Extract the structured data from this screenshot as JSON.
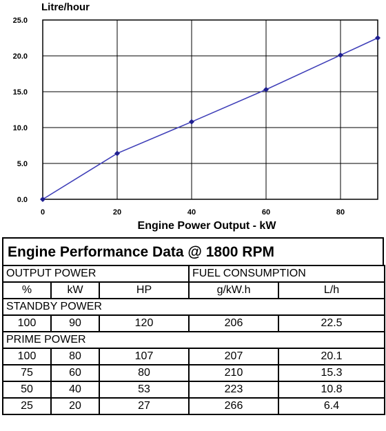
{
  "chart_data": {
    "type": "line",
    "ylabel": "Litre/hour",
    "xlabel": "Engine Power Output - kW",
    "x": [
      0,
      20,
      40,
      60,
      80,
      90
    ],
    "series": [
      {
        "values": [
          0.0,
          6.4,
          10.8,
          15.3,
          20.1,
          22.5
        ]
      }
    ],
    "xlim": [
      0,
      90
    ],
    "ylim": [
      0,
      25
    ],
    "x_ticks": [
      "0",
      "20",
      "40",
      "60",
      "80"
    ],
    "x_tick_values": [
      0,
      20,
      40,
      60,
      80
    ],
    "y_ticks": [
      "0.0",
      "5.0",
      "10.0",
      "15.0",
      "20.0",
      "25.0"
    ],
    "y_tick_values": [
      0,
      5,
      10,
      15,
      20,
      25
    ],
    "grid": true,
    "line_color": "#3f3fb8",
    "marker_color": "#1f1f8f"
  },
  "table": {
    "title": "Engine Performance Data @ 1800 RPM",
    "group_headers": {
      "output": "OUTPUT POWER",
      "fuel": "FUEL CONSUMPTION"
    },
    "columns": [
      "%",
      "kW",
      "HP",
      "g/kW.h",
      "L/h"
    ],
    "standby_label": "STANDBY POWER",
    "standby_rows": [
      [
        "100",
        "90",
        "120",
        "206",
        "22.5"
      ]
    ],
    "prime_label": "PRIME POWER",
    "prime_rows": [
      [
        "100",
        "80",
        "107",
        "207",
        "20.1"
      ],
      [
        "75",
        "60",
        "80",
        "210",
        "15.3"
      ],
      [
        "50",
        "40",
        "53",
        "223",
        "10.8"
      ],
      [
        "25",
        "20",
        "27",
        "266",
        "6.4"
      ]
    ]
  }
}
